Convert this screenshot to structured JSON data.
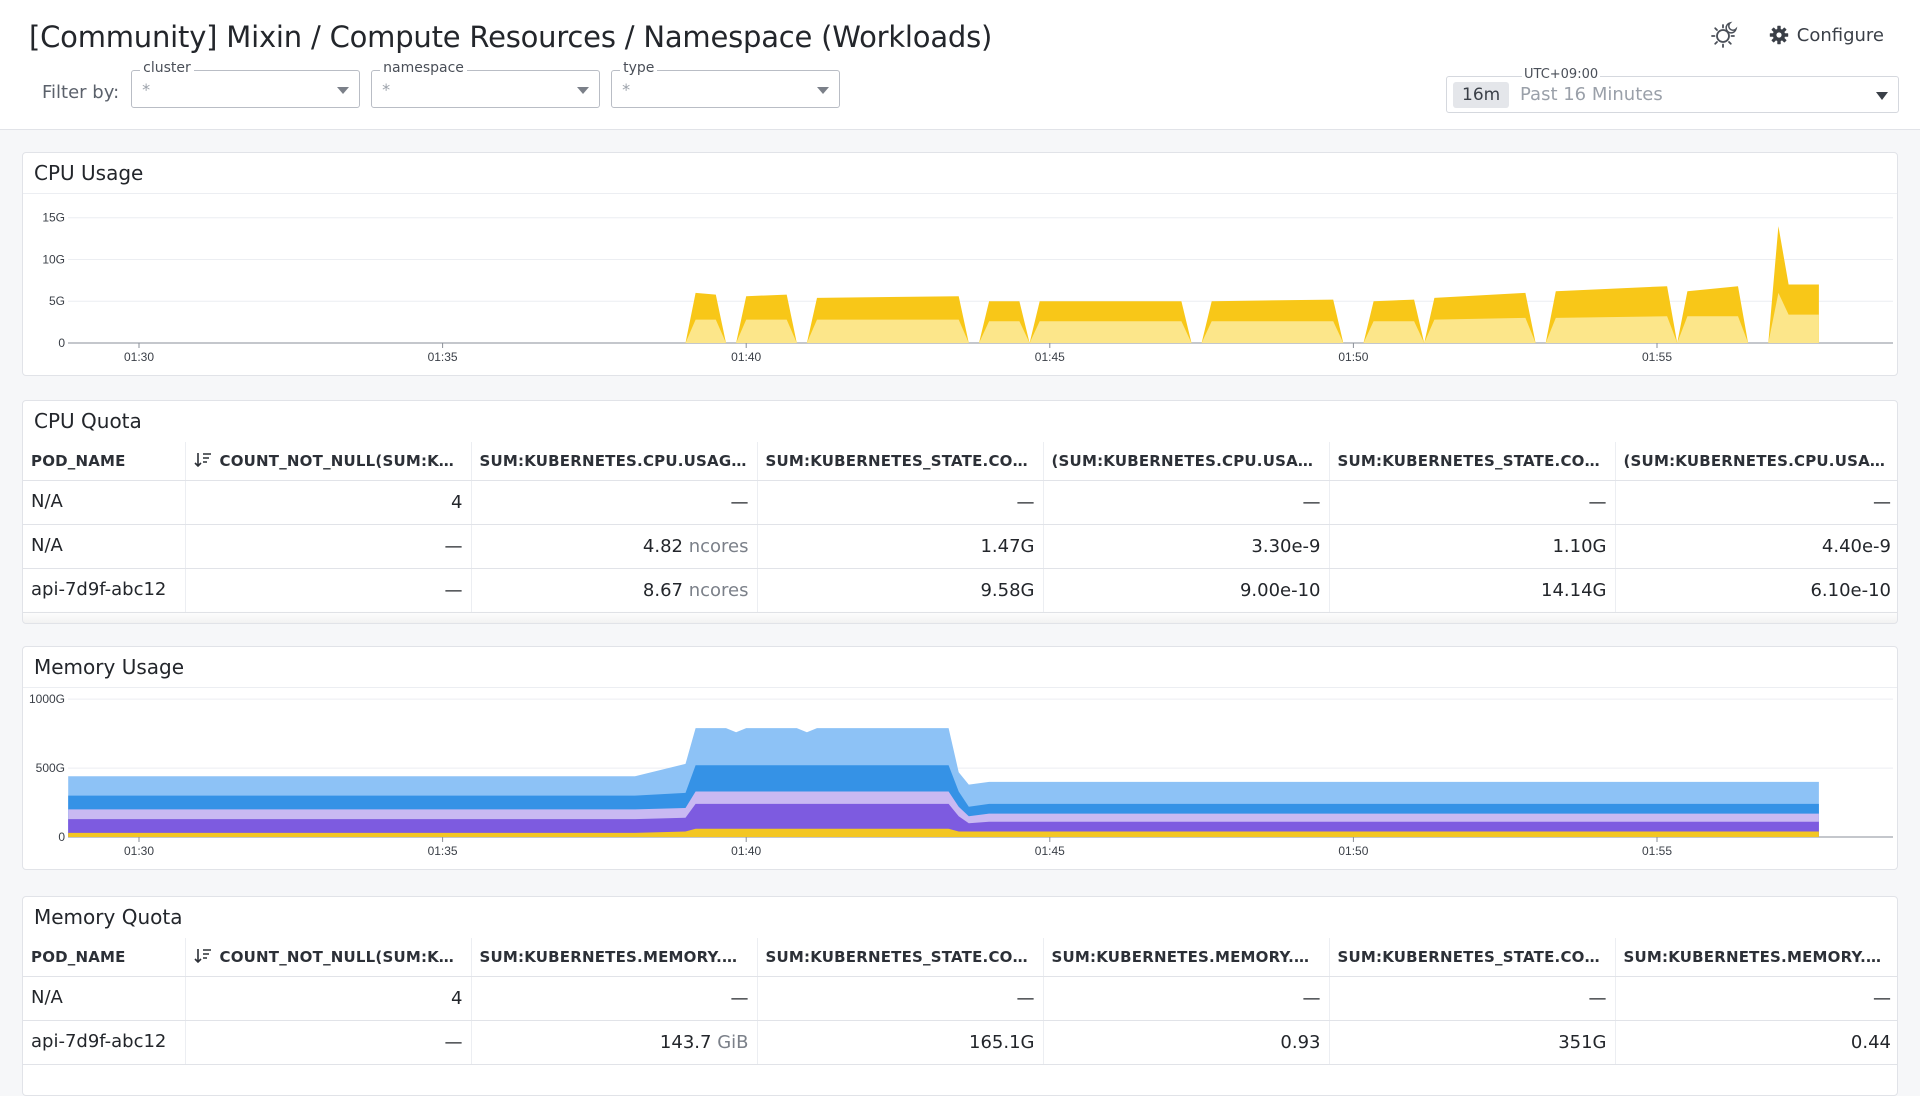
{
  "header": {
    "title": "[Community] Mixin / Compute Resources / Namespace (Workloads)",
    "configure_label": "Configure",
    "filter_label": "Filter by:",
    "filters": [
      {
        "name": "cluster",
        "value": "*"
      },
      {
        "name": "namespace",
        "value": "*"
      },
      {
        "name": "type",
        "value": "*"
      }
    ],
    "timepicker": {
      "timezone": "UTC+09:00",
      "badge": "16m",
      "label": "Past 16 Minutes"
    }
  },
  "icons": {
    "theme": "sun-moon-icon",
    "configure": "gear-icon",
    "sort": "sort-desc-icon",
    "dropdown": "chevron-down-icon"
  },
  "colors": {
    "cpu_dark": "#f8c718",
    "cpu_light": "#fce68a",
    "mem_light_blue": "#8dc2f6",
    "mem_blue": "#3592e6",
    "mem_lavender": "#c9b9f2",
    "mem_purple": "#7d5be0",
    "mem_yellow": "#f3c623",
    "grid": "#eceef2"
  },
  "cpu_usage": {
    "title": "CPU Usage",
    "chart_data": {
      "type": "area",
      "x_ticks": [
        "01:30",
        "01:35",
        "01:40",
        "01:45",
        "01:50",
        "01:55"
      ],
      "y_ticks": [
        "0",
        "5G",
        "10G",
        "15G"
      ],
      "ylim": [
        0,
        17
      ],
      "series": [
        {
          "points": [
            [
              "01:39:00",
              0
            ],
            [
              "01:39:10",
              6
            ],
            [
              "01:39:30",
              5.8
            ],
            [
              "01:39:40",
              0
            ],
            [
              "01:39:50",
              0
            ],
            [
              "01:40:00",
              5.6
            ],
            [
              "01:40:40",
              5.8
            ],
            [
              "01:40:50",
              0
            ],
            [
              "01:41:00",
              0
            ],
            [
              "01:41:10",
              5.4
            ],
            [
              "01:43:30",
              5.6
            ],
            [
              "01:43:40",
              0
            ],
            [
              "01:43:50",
              0
            ],
            [
              "01:44:00",
              5.0
            ],
            [
              "01:44:30",
              5.0
            ],
            [
              "01:44:40",
              0
            ],
            [
              "01:44:50",
              5.0
            ],
            [
              "01:46:30",
              5.0
            ],
            [
              "01:47:10",
              5.0
            ],
            [
              "01:47:20",
              0
            ],
            [
              "01:47:30",
              0
            ],
            [
              "01:47:40",
              5.0
            ],
            [
              "01:49:40",
              5.2
            ],
            [
              "01:49:50",
              0
            ],
            [
              "01:50:10",
              0
            ],
            [
              "01:50:20",
              5.0
            ],
            [
              "01:51:00",
              5.2
            ],
            [
              "01:51:10",
              0
            ],
            [
              "01:51:20",
              5.4
            ],
            [
              "01:52:50",
              6.0
            ],
            [
              "01:53:00",
              0
            ],
            [
              "01:53:10",
              0
            ],
            [
              "01:53:20",
              6.2
            ],
            [
              "01:55:10",
              6.8
            ],
            [
              "01:55:20",
              0
            ],
            [
              "01:55:30",
              6.2
            ],
            [
              "01:56:20",
              6.8
            ],
            [
              "01:56:30",
              0
            ],
            [
              "01:56:50",
              0
            ],
            [
              "01:57:00",
              14.0
            ],
            [
              "01:57:10",
              7.0
            ],
            [
              "01:57:40",
              7.0
            ],
            [
              "01:57:40",
              0
            ]
          ]
        },
        {
          "points": [
            [
              "01:39:00",
              0
            ],
            [
              "01:39:10",
              2.8
            ],
            [
              "01:39:30",
              2.8
            ],
            [
              "01:39:40",
              0
            ],
            [
              "01:39:50",
              0
            ],
            [
              "01:40:00",
              2.8
            ],
            [
              "01:40:40",
              2.8
            ],
            [
              "01:40:50",
              0
            ],
            [
              "01:41:00",
              0
            ],
            [
              "01:41:10",
              2.8
            ],
            [
              "01:43:30",
              2.8
            ],
            [
              "01:43:40",
              0
            ],
            [
              "01:43:50",
              0
            ],
            [
              "01:44:00",
              2.6
            ],
            [
              "01:44:30",
              2.6
            ],
            [
              "01:44:40",
              0
            ],
            [
              "01:44:50",
              2.6
            ],
            [
              "01:47:10",
              2.6
            ],
            [
              "01:47:20",
              0
            ],
            [
              "01:47:30",
              0
            ],
            [
              "01:47:40",
              2.6
            ],
            [
              "01:49:40",
              2.6
            ],
            [
              "01:49:50",
              0
            ],
            [
              "01:50:10",
              0
            ],
            [
              "01:50:20",
              2.6
            ],
            [
              "01:51:00",
              2.6
            ],
            [
              "01:51:10",
              0
            ],
            [
              "01:51:20",
              2.8
            ],
            [
              "01:52:50",
              3.0
            ],
            [
              "01:53:00",
              0
            ],
            [
              "01:53:10",
              0
            ],
            [
              "01:53:20",
              3.0
            ],
            [
              "01:55:10",
              3.2
            ],
            [
              "01:55:20",
              0
            ],
            [
              "01:55:30",
              3.2
            ],
            [
              "01:56:20",
              3.2
            ],
            [
              "01:56:30",
              0
            ],
            [
              "01:56:50",
              0
            ],
            [
              "01:57:00",
              6.0
            ],
            [
              "01:57:10",
              3.4
            ],
            [
              "01:57:40",
              3.4
            ],
            [
              "01:57:40",
              0
            ]
          ]
        }
      ]
    }
  },
  "cpu_quota": {
    "title": "CPU Quota",
    "columns": [
      "POD_NAME",
      "COUNT_NOT_NULL(SUM:KUB...",
      "SUM:KUBERNETES.CPU.USAGE.T...",
      "SUM:KUBERNETES_STATE.CONTA...",
      "(SUM:KUBERNETES.CPU.USAGE.T...",
      "SUM:KUBERNETES_STATE.CONTA...",
      "(SUM:KUBERNETES.CPU.USAGE.T..."
    ],
    "rows": [
      {
        "pod": "N/A",
        "count": "4",
        "usage": "—",
        "usage_unit": "",
        "req": "—",
        "req_pct": "—",
        "limit": "—",
        "limit_pct": "—"
      },
      {
        "pod": "N/A",
        "count": "—",
        "usage": "4.82",
        "usage_unit": "ncores",
        "req": "1.47G",
        "req_pct": "3.30e-9",
        "limit": "1.10G",
        "limit_pct": "4.40e-9"
      },
      {
        "pod": "api-7d9f-abc12",
        "count": "—",
        "usage": "8.67",
        "usage_unit": "ncores",
        "req": "9.58G",
        "req_pct": "9.00e-10",
        "limit": "14.14G",
        "limit_pct": "6.10e-10"
      }
    ]
  },
  "memory_usage": {
    "title": "Memory Usage",
    "chart_data": {
      "type": "area",
      "x_ticks": [
        "01:30",
        "01:35",
        "01:40",
        "01:45",
        "01:50",
        "01:55"
      ],
      "y_ticks": [
        "0",
        "500G",
        "1000G"
      ],
      "ylim": [
        0,
        1000
      ],
      "stack_levels": [
        {
          "name": "",
          "points": [
            [
              "01:28:50",
              440
            ],
            [
              "01:38:10",
              440
            ],
            [
              "01:39:00",
              530
            ],
            [
              "01:39:10",
              790
            ],
            [
              "01:39:40",
              790
            ],
            [
              "01:39:50",
              760
            ],
            [
              "01:40:00",
              790
            ],
            [
              "01:40:50",
              790
            ],
            [
              "01:41:00",
              760
            ],
            [
              "01:41:10",
              790
            ],
            [
              "01:43:20",
              790
            ],
            [
              "01:43:30",
              470
            ],
            [
              "01:43:40",
              380
            ],
            [
              "01:44:00",
              400
            ],
            [
              "01:57:40",
              400
            ]
          ]
        },
        {
          "name": "",
          "points": [
            [
              "01:28:50",
              300
            ],
            [
              "01:38:10",
              300
            ],
            [
              "01:39:00",
              320
            ],
            [
              "01:39:10",
              520
            ],
            [
              "01:43:20",
              520
            ],
            [
              "01:43:30",
              330
            ],
            [
              "01:43:40",
              220
            ],
            [
              "01:44:00",
              240
            ],
            [
              "01:57:40",
              240
            ]
          ]
        },
        {
          "name": "",
          "points": [
            [
              "01:28:50",
              200
            ],
            [
              "01:38:10",
              200
            ],
            [
              "01:39:00",
              210
            ],
            [
              "01:39:10",
              330
            ],
            [
              "01:43:20",
              330
            ],
            [
              "01:43:30",
              220
            ],
            [
              "01:43:40",
              150
            ],
            [
              "01:44:00",
              170
            ],
            [
              "01:57:40",
              170
            ]
          ]
        },
        {
          "name": "",
          "points": [
            [
              "01:28:50",
              130
            ],
            [
              "01:38:10",
              130
            ],
            [
              "01:39:00",
              140
            ],
            [
              "01:39:10",
              240
            ],
            [
              "01:43:20",
              240
            ],
            [
              "01:43:30",
              150
            ],
            [
              "01:43:40",
              100
            ],
            [
              "01:44:00",
              110
            ],
            [
              "01:57:40",
              110
            ]
          ]
        },
        {
          "name": "",
          "points": [
            [
              "01:28:50",
              30
            ],
            [
              "01:38:10",
              30
            ],
            [
              "01:39:00",
              40
            ],
            [
              "01:39:10",
              60
            ],
            [
              "01:43:20",
              60
            ],
            [
              "01:43:30",
              40
            ],
            [
              "01:44:00",
              40
            ],
            [
              "01:57:40",
              40
            ]
          ]
        }
      ]
    }
  },
  "memory_quota": {
    "title": "Memory Quota",
    "columns": [
      "POD_NAME",
      "COUNT_NOT_NULL(SUM:KUB...",
      "SUM:KUBERNETES.MEMORY.WO...",
      "SUM:KUBERNETES_STATE.CONTA...",
      "SUM:KUBERNETES.MEMORY.WO...",
      "SUM:KUBERNETES_STATE.CONTA...",
      "SUM:KUBERNETES.MEMORY.WO..."
    ],
    "rows": [
      {
        "pod": "N/A",
        "count": "4",
        "usage": "—",
        "usage_unit": "",
        "req": "—",
        "req_pct": "—",
        "limit": "—",
        "limit_pct": "—"
      },
      {
        "pod": "api-7d9f-abc12",
        "count": "—",
        "usage": "143.7",
        "usage_unit": "GiB",
        "req": "165.1G",
        "req_pct": "0.93",
        "limit": "351G",
        "limit_pct": "0.44"
      }
    ]
  }
}
